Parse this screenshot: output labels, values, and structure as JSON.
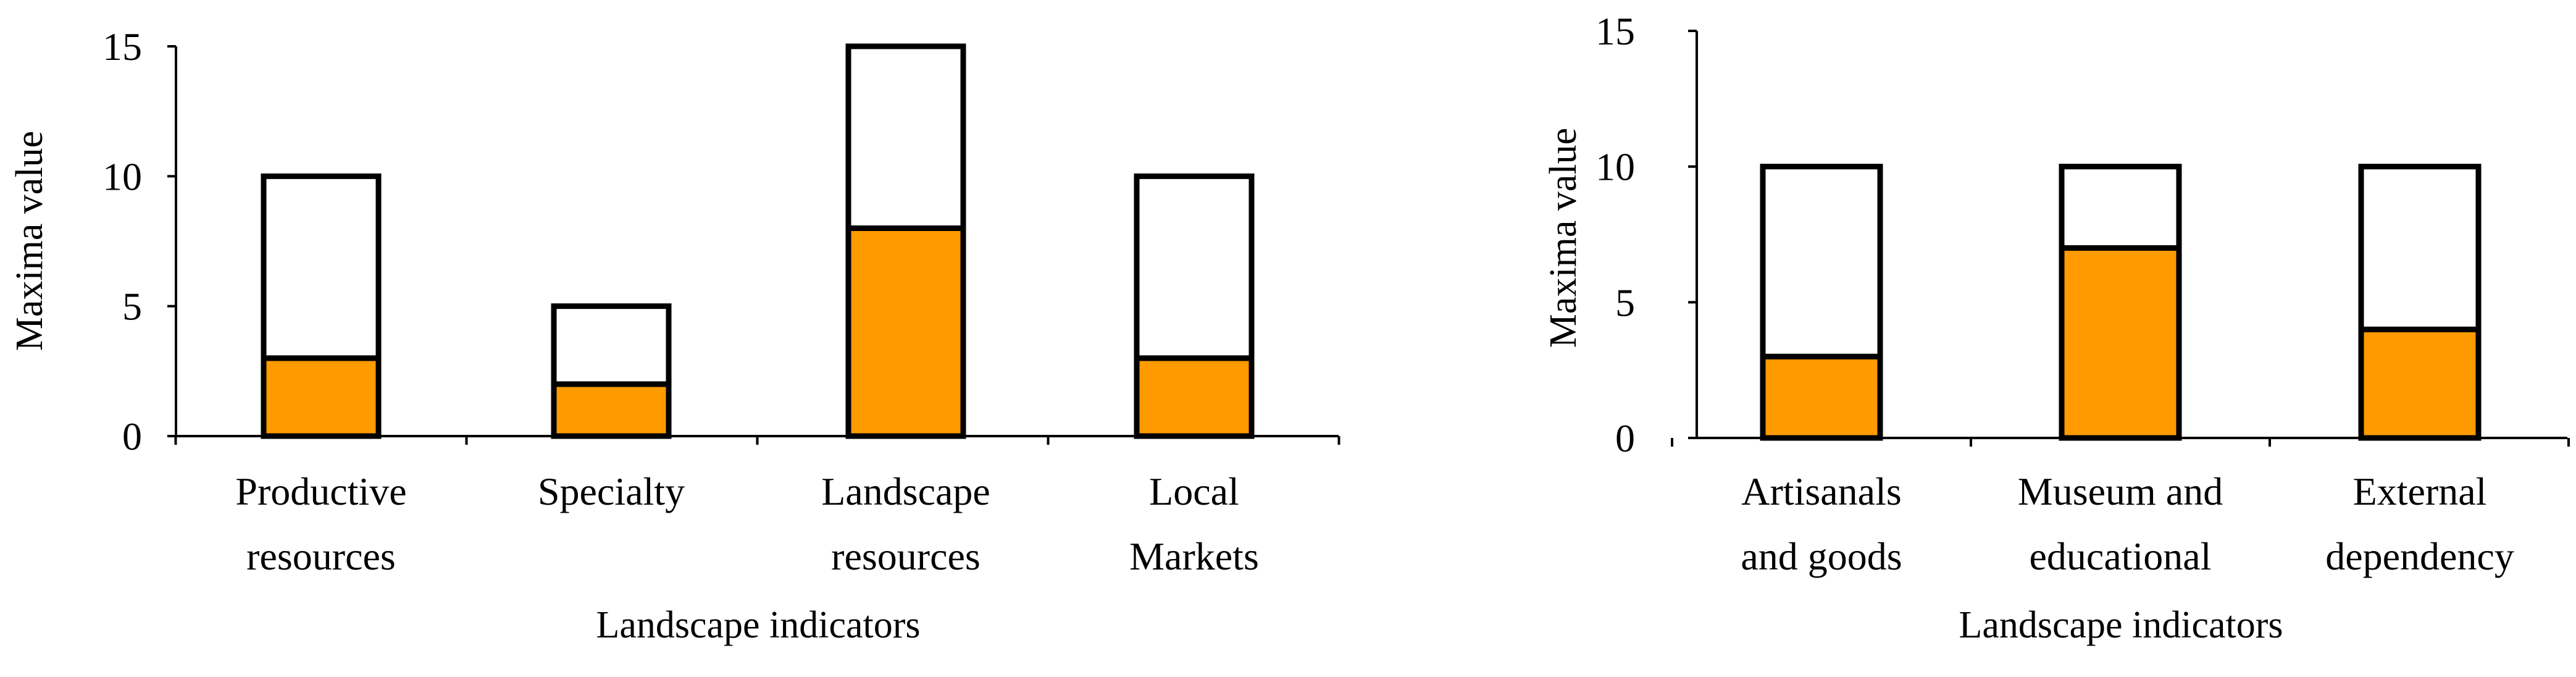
{
  "colors": {
    "filled": "#FF9A00",
    "max_box": "#FFFFFF",
    "stroke": "#000000"
  },
  "chart_data": [
    {
      "type": "bar",
      "stacked": true,
      "categories": [
        [
          "Productive",
          "resources"
        ],
        [
          "Specialty"
        ],
        [
          "Landscape",
          "resources"
        ],
        [
          "Local",
          "Markets"
        ]
      ],
      "series": [
        {
          "values": [
            3,
            2,
            8,
            3
          ],
          "color": "#FF9A00"
        },
        {
          "values": [
            7,
            3,
            7,
            7
          ],
          "color": "#FFFFFF"
        }
      ],
      "totals": [
        10,
        5,
        15,
        10
      ],
      "xlabel": "Landscape indicators",
      "ylabel": "Maxima value",
      "ylim": [
        0,
        15
      ],
      "yticks": [
        0,
        5,
        10,
        15
      ],
      "grid": false
    },
    {
      "type": "bar",
      "stacked": true,
      "categories": [
        [
          "Artisanals",
          "and goods"
        ],
        [
          "Museum and",
          "educational"
        ],
        [
          "External",
          "dependency"
        ]
      ],
      "series": [
        {
          "values": [
            3,
            7,
            4
          ],
          "color": "#FF9A00"
        },
        {
          "values": [
            7,
            3,
            6
          ],
          "color": "#FFFFFF"
        }
      ],
      "totals": [
        10,
        10,
        10
      ],
      "xlabel": "Landscape indicators",
      "ylabel": "Maxima value",
      "ylim": [
        0,
        15
      ],
      "yticks": [
        0,
        5,
        10,
        15
      ],
      "grid": false
    }
  ]
}
